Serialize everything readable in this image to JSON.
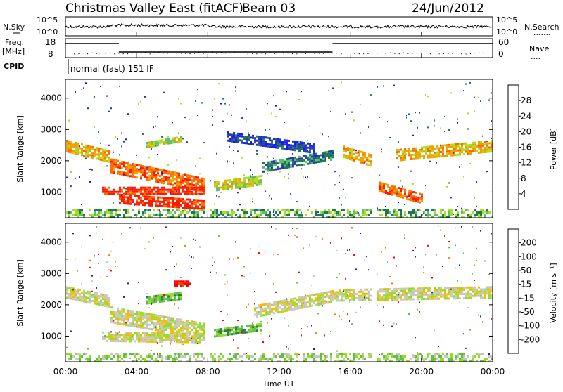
{
  "header": {
    "station": "Christmas Valley East (fitACF)",
    "beam": "Beam 03",
    "date": "24/Jun/2012"
  },
  "noise_panel": {
    "left_label": "N.Sky",
    "right_label": "N.Search",
    "left_ticks": [
      "10^5",
      "10^0"
    ],
    "right_ticks": [
      "10^5",
      "10^0"
    ],
    "gaps_hours": [
      [
        7.85,
        8.1
      ],
      [
        17.2,
        17.4
      ],
      [
        17.85,
        17.95
      ]
    ]
  },
  "freq_panel": {
    "left_label_1": "Freq.",
    "left_label_2": "[MHz]",
    "right_label": "Nave",
    "left_ticks": [
      "18",
      "8"
    ],
    "right_ticks": [
      "60",
      "0"
    ],
    "freq_steps": [
      {
        "from_h": 0.0,
        "to_h": 3.0,
        "mhz": 16.5
      },
      {
        "from_h": 3.0,
        "to_h": 15.0,
        "mhz": 10.5
      },
      {
        "from_h": 15.0,
        "to_h": 24.0,
        "mhz": 16.5
      }
    ]
  },
  "cpid": {
    "label": "CPID",
    "mode": "normal (fast) 151 IF"
  },
  "chart_data": [
    {
      "type": "heatmap",
      "quantity": "Power",
      "ylabel": "Slant Range [km]",
      "ylim": [
        180,
        4600
      ],
      "yticks": [
        "1000",
        "2000",
        "3000",
        "4000"
      ],
      "xlim_hours": [
        0,
        24
      ],
      "colorbar_label": "Power [dB]",
      "colorbar_ticks": [
        "28",
        "24",
        "20",
        "16",
        "12",
        "8",
        "4"
      ],
      "colors": [
        "#1a1aff",
        "#2a3ab0",
        "#1e7a50",
        "#5abf6a",
        "#a8e020",
        "#f0a000",
        "#ff6a00",
        "#ff1a00"
      ],
      "bands": [
        {
          "t0": 0.0,
          "t1": 2.5,
          "r0": 2500,
          "r1": 2150,
          "w": 350,
          "level": 5
        },
        {
          "t0": 2.5,
          "t1": 8.0,
          "r0": 1850,
          "r1": 1200,
          "w": 450,
          "level": 6
        },
        {
          "t0": 2.0,
          "t1": 8.0,
          "r0": 1050,
          "r1": 1050,
          "w": 250,
          "level": 7
        },
        {
          "t0": 3.0,
          "t1": 8.0,
          "r0": 800,
          "r1": 600,
          "w": 300,
          "level": 7
        },
        {
          "t0": 8.3,
          "t1": 11.0,
          "r0": 1200,
          "r1": 1400,
          "w": 300,
          "level": 4
        },
        {
          "t0": 11.0,
          "t1": 15.0,
          "r0": 1800,
          "r1": 2200,
          "w": 300,
          "level": 2
        },
        {
          "t0": 15.5,
          "t1": 17.2,
          "r0": 2300,
          "r1": 2000,
          "w": 400,
          "level": 5
        },
        {
          "t0": 17.5,
          "t1": 20.0,
          "r0": 1200,
          "r1": 800,
          "w": 300,
          "level": 6
        },
        {
          "t0": 18.5,
          "t1": 24.0,
          "r0": 2200,
          "r1": 2500,
          "w": 350,
          "level": 5
        },
        {
          "t0": 4.5,
          "t1": 6.5,
          "r0": 2500,
          "r1": 2700,
          "w": 200,
          "level": 4
        },
        {
          "t0": 9.0,
          "t1": 14.0,
          "r0": 2800,
          "r1": 2400,
          "w": 300,
          "level": 1
        }
      ],
      "ground_scatter": {
        "range_max": 450,
        "level": 3
      }
    },
    {
      "type": "heatmap",
      "quantity": "Velocity",
      "ylabel": "Slant Range [km]",
      "ylim": [
        180,
        4600
      ],
      "yticks": [
        "1000",
        "2000",
        "3000",
        "4000"
      ],
      "xlim_hours": [
        0,
        24
      ],
      "xticks": [
        "00:00",
        "04:00",
        "08:00",
        "12:00",
        "16:00",
        "20:00",
        "00:00"
      ],
      "xlabel": "Time UT",
      "colorbar_label": "Velocity [m s⁻¹]",
      "colorbar_ticks": [
        "200",
        "100",
        "50",
        "15",
        "-15",
        "-50",
        "-100",
        "-200"
      ],
      "colors": [
        "#2020c0",
        "#2a7a50",
        "#60c040",
        "#90e020",
        "#c8c8c0",
        "#f0c000",
        "#ff8000",
        "#ff4000",
        "#ff0000"
      ],
      "bands": [
        {
          "t0": 0.0,
          "t1": 2.5,
          "r0": 2400,
          "r1": 2100,
          "w": 400,
          "level": 4
        },
        {
          "t0": 2.5,
          "t1": 8.0,
          "r0": 1700,
          "r1": 1150,
          "w": 500,
          "level": 4
        },
        {
          "t0": 2.0,
          "t1": 8.0,
          "r0": 1000,
          "r1": 950,
          "w": 300,
          "level": 4
        },
        {
          "t0": 8.3,
          "t1": 11.0,
          "r0": 1100,
          "r1": 1300,
          "w": 250,
          "level": 2
        },
        {
          "t0": 10.5,
          "t1": 15.0,
          "r0": 1800,
          "r1": 2300,
          "w": 350,
          "level": 4
        },
        {
          "t0": 15.0,
          "t1": 24.0,
          "r0": 2300,
          "r1": 2400,
          "w": 400,
          "level": 4
        },
        {
          "t0": 4.5,
          "t1": 6.5,
          "r0": 2150,
          "r1": 2300,
          "w": 250,
          "level": 2
        },
        {
          "t0": 6.0,
          "t1": 7.0,
          "r0": 2700,
          "r1": 2700,
          "w": 150,
          "level": 8
        }
      ],
      "ground_scatter": {
        "range_max": 450,
        "level": 3
      }
    }
  ]
}
